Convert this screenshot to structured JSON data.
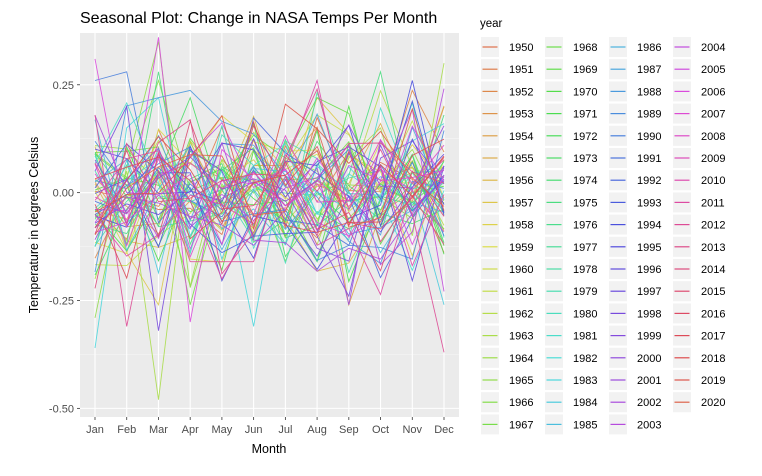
{
  "chart_data": {
    "type": "line",
    "title": "Seasonal Plot: Change in NASA Temps Per Month",
    "xlabel": "Month",
    "ylabel": "Temperature in degrees Celsius",
    "categories": [
      "Jan",
      "Feb",
      "Mar",
      "Apr",
      "May",
      "Jun",
      "Jul",
      "Aug",
      "Sep",
      "Oct",
      "Nov",
      "Dec"
    ],
    "ylim": [
      -0.52,
      0.37
    ],
    "yticks": [
      0.25,
      0.0,
      -0.25,
      -0.5
    ],
    "ytick_labels": [
      "0.25",
      "0.00",
      "-0.25",
      "-0.50"
    ],
    "grid": true,
    "background": "#ebebeb",
    "legend": {
      "title": "year",
      "placement": "right",
      "columns": 4
    },
    "years": [
      1950,
      1951,
      1952,
      1953,
      1954,
      1955,
      1956,
      1957,
      1958,
      1959,
      1960,
      1961,
      1962,
      1963,
      1964,
      1965,
      1966,
      1967,
      1968,
      1969,
      1970,
      1971,
      1972,
      1973,
      1974,
      1975,
      1976,
      1977,
      1978,
      1979,
      1980,
      1981,
      1982,
      1983,
      1984,
      1985,
      1986,
      1987,
      1988,
      1989,
      1990,
      1991,
      1992,
      1993,
      1994,
      1995,
      1996,
      1997,
      1998,
      1999,
      2000,
      2001,
      2002,
      2003,
      2004,
      2005,
      2006,
      2007,
      2008,
      2009,
      2010,
      2011,
      2012,
      2013,
      2014,
      2015,
      2016,
      2017,
      2018,
      2019,
      2020
    ],
    "highlight_series": [
      {
        "name": "1963",
        "values": [
          -0.2,
          0.05,
          -0.48,
          0.12,
          -0.05,
          0.1,
          0.02,
          -0.12,
          0.08,
          0.15,
          -0.1,
          0.3
        ]
      },
      {
        "name": "1965",
        "values": [
          -0.29,
          0.06,
          0.35,
          -0.22,
          0.02,
          -0.1,
          0.08,
          0.05,
          -0.06,
          0.02,
          0.1,
          -0.05
        ]
      },
      {
        "name": "1983",
        "values": [
          -0.36,
          0.15,
          0.22,
          -0.1,
          0.05,
          -0.31,
          0.1,
          -0.05,
          0.06,
          -0.02,
          0.12,
          0.16
        ]
      },
      {
        "name": "2006",
        "values": [
          0.31,
          -0.08,
          0.36,
          -0.3,
          0.1,
          0.03,
          -0.04,
          0.08,
          -0.02,
          0.06,
          -0.12,
          0.04
        ]
      },
      {
        "name": "2012",
        "values": [
          0.18,
          -0.31,
          0.05,
          -0.16,
          -0.16,
          -0.16,
          0.08,
          0.24,
          -0.04,
          0.1,
          -0.05,
          -0.37
        ]
      },
      {
        "name": "1998",
        "values": [
          0.05,
          0.2,
          -0.32,
          0.1,
          0.05,
          -0.1,
          0.03,
          -0.1,
          -0.24,
          0.08,
          0.12,
          0.02
        ]
      },
      {
        "name": "1975",
        "values": [
          0.09,
          -0.12,
          0.28,
          -0.12,
          0.06,
          0.02,
          -0.04,
          -0.16,
          0.04,
          0.28,
          -0.04,
          0.18
        ]
      },
      {
        "name": "1990",
        "values": [
          0.26,
          0.28,
          -0.07,
          0.02,
          -0.04,
          0.06,
          -0.03,
          0.03,
          0.1,
          -0.05,
          0.07,
          -0.1
        ]
      }
    ]
  }
}
